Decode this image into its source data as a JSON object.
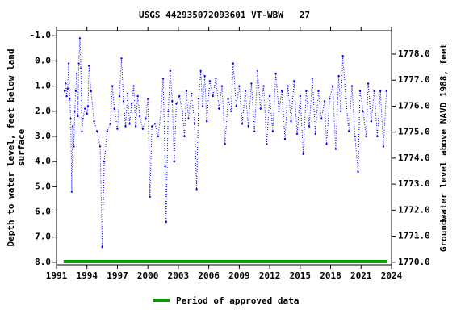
{
  "chart_data": {
    "type": "line",
    "title": "USGS 442935072093601 VT-WBW   27",
    "y_label": [
      "Depth to water level, feet below land",
      "surface"
    ],
    "y2_label": "Groundwater level above NAVD 1988, feet",
    "xlim": [
      1991,
      2024
    ],
    "xticks": [
      1991,
      1994,
      1997,
      2000,
      2003,
      2006,
      2009,
      2012,
      2015,
      2018,
      2021,
      2024
    ],
    "ylim": [
      -1.2,
      8.1
    ],
    "y_inverted": true,
    "yticks": [
      {
        "value": -1,
        "label": "-1.0"
      },
      {
        "value": 0,
        "label": "0.0"
      },
      {
        "value": 1,
        "label": "1.0"
      },
      {
        "value": 2,
        "label": "2.0"
      },
      {
        "value": 3,
        "label": "3.0"
      },
      {
        "value": 4,
        "label": "4.0"
      },
      {
        "value": 5,
        "label": "5.0"
      },
      {
        "value": 6,
        "label": "6.0"
      },
      {
        "value": 7,
        "label": "7.0"
      },
      {
        "value": 8,
        "label": "8.0"
      }
    ],
    "y2lim": [
      1769.9,
      1778.9
    ],
    "y2ticks": [
      {
        "value": 1770,
        "label": "1770.0"
      },
      {
        "value": 1771,
        "label": "1771.0"
      },
      {
        "value": 1772,
        "label": "1772.0"
      },
      {
        "value": 1773,
        "label": "1773.0"
      },
      {
        "value": 1774,
        "label": "1774.0"
      },
      {
        "value": 1775,
        "label": "1775.0"
      },
      {
        "value": 1776,
        "label": "1776.0"
      },
      {
        "value": 1777,
        "label": "1777.0"
      },
      {
        "value": 1778,
        "label": "1778.0"
      }
    ],
    "series": [
      {
        "color": "#0000ff",
        "x": [
          1991.8,
          1991.9,
          1992.0,
          1992.1,
          1992.2,
          1992.3,
          1992.4,
          1992.5,
          1992.6,
          1992.7,
          1992.8,
          1992.9,
          1993.0,
          1993.1,
          1993.2,
          1993.3,
          1993.4,
          1993.5,
          1993.6,
          1993.8,
          1994.0,
          1994.1,
          1994.2,
          1994.4,
          1994.7,
          1995.0,
          1995.3,
          1995.5,
          1995.7,
          1996.0,
          1996.3,
          1996.5,
          1996.7,
          1997.0,
          1997.2,
          1997.4,
          1997.6,
          1997.8,
          1998.0,
          1998.2,
          1998.4,
          1998.6,
          1998.8,
          1999.0,
          1999.2,
          1999.5,
          1999.8,
          2000.0,
          2000.2,
          2000.4,
          2000.7,
          2001.0,
          2001.3,
          2001.5,
          2001.7,
          2001.8,
          2002.0,
          2002.2,
          2002.4,
          2002.6,
          2002.8,
          2003.1,
          2003.4,
          2003.6,
          2003.8,
          2004.0,
          2004.3,
          2004.6,
          2004.8,
          2005.0,
          2005.2,
          2005.4,
          2005.6,
          2005.8,
          2006.1,
          2006.4,
          2006.7,
          2007.0,
          2007.3,
          2007.6,
          2007.9,
          2008.2,
          2008.4,
          2008.7,
          2009.0,
          2009.3,
          2009.6,
          2009.9,
          2010.2,
          2010.5,
          2010.8,
          2011.1,
          2011.4,
          2011.7,
          2012.0,
          2012.3,
          2012.6,
          2012.9,
          2013.2,
          2013.5,
          2013.8,
          2014.1,
          2014.4,
          2014.7,
          2015.0,
          2015.3,
          2015.6,
          2015.9,
          2016.2,
          2016.5,
          2016.8,
          2017.1,
          2017.4,
          2017.6,
          2017.9,
          2018.2,
          2018.5,
          2018.8,
          2019.0,
          2019.2,
          2019.5,
          2019.8,
          2020.1,
          2020.4,
          2020.7,
          2020.9,
          2021.2,
          2021.5,
          2021.7,
          2022.0,
          2022.3,
          2022.6,
          2022.9,
          2023.2,
          2023.5
        ],
        "values": [
          1.2,
          0.9,
          1.4,
          1.1,
          0.1,
          1.5,
          2.3,
          5.2,
          2.6,
          3.4,
          2.0,
          1.2,
          0.5,
          2.2,
          0.1,
          -0.9,
          0.3,
          2.8,
          2.3,
          1.9,
          2.1,
          1.8,
          0.2,
          1.2,
          2.4,
          2.8,
          3.4,
          7.4,
          4.0,
          2.8,
          2.5,
          1.0,
          1.9,
          2.7,
          1.4,
          -0.1,
          1.6,
          2.6,
          1.3,
          2.5,
          1.7,
          1.0,
          2.6,
          1.4,
          2.2,
          2.7,
          2.3,
          1.5,
          5.4,
          2.6,
          2.5,
          3.0,
          2.0,
          0.7,
          4.2,
          6.4,
          2.0,
          0.4,
          1.6,
          4.0,
          1.7,
          1.4,
          2.0,
          3.0,
          1.2,
          2.3,
          1.3,
          2.5,
          5.1,
          1.5,
          0.4,
          1.8,
          0.6,
          2.4,
          0.8,
          1.4,
          0.7,
          1.9,
          1.0,
          3.3,
          1.5,
          2.0,
          0.1,
          1.8,
          1.0,
          2.5,
          1.2,
          2.6,
          0.9,
          2.8,
          0.4,
          1.9,
          1.0,
          3.3,
          1.4,
          2.8,
          0.5,
          2.0,
          1.2,
          3.1,
          1.0,
          2.4,
          0.8,
          2.9,
          1.4,
          3.7,
          1.2,
          2.6,
          0.7,
          2.9,
          1.2,
          2.3,
          1.6,
          3.3,
          1.5,
          1.0,
          3.5,
          0.6,
          2.0,
          -0.2,
          1.5,
          2.8,
          1.0,
          3.0,
          4.4,
          1.2,
          2.0,
          3.0,
          0.9,
          2.4,
          1.2,
          3.0,
          1.2,
          3.4,
          1.2
        ]
      }
    ],
    "approved_period": {
      "name": "Period of approved data",
      "color": "#00a000",
      "x": [
        1991.7,
        2023.6
      ]
    }
  }
}
